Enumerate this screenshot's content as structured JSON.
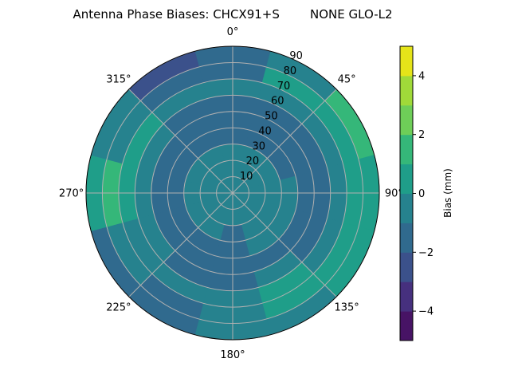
{
  "chart_data": {
    "type": "polar-contour",
    "title": "Antenna Phase Biases: CHCX91+S        NONE GLO-L2",
    "theta_direction": "clockwise",
    "theta_zero": "north",
    "theta_ticks": [
      "0°",
      "45°",
      "90°",
      "135°",
      "180°",
      "225°",
      "270°",
      "315°"
    ],
    "theta_tick_values": [
      0,
      45,
      90,
      135,
      180,
      225,
      270,
      315
    ],
    "r_ticks": [
      "10",
      "20",
      "30",
      "40",
      "50",
      "60",
      "70",
      "80",
      "90"
    ],
    "r_tick_values": [
      10,
      20,
      30,
      40,
      50,
      60,
      70,
      80,
      90
    ],
    "rlim": [
      0,
      90
    ],
    "grid": true,
    "colorbar": {
      "label": "Bias (mm)",
      "levels": [
        -5,
        -4,
        -3,
        -2,
        -1,
        0,
        1,
        2,
        3,
        4,
        5
      ],
      "ticks": [
        "−4",
        "−2",
        "0",
        "2",
        "4"
      ],
      "tick_values": [
        -4,
        -2,
        0,
        2,
        4
      ],
      "colors": [
        "#471365",
        "#46307e",
        "#3b518b",
        "#306a8e",
        "#26828e",
        "#1f9e89",
        "#35b779",
        "#6ece58",
        "#a0da39",
        "#e5e419"
      ]
    },
    "azimuths": [
      0,
      30,
      60,
      90,
      120,
      150,
      180,
      210,
      240,
      270,
      300,
      330
    ],
    "zenith_bands": [
      [
        0,
        10
      ],
      [
        10,
        20
      ],
      [
        20,
        30
      ],
      [
        30,
        40
      ],
      [
        40,
        50
      ],
      [
        50,
        60
      ],
      [
        60,
        70
      ],
      [
        70,
        80
      ],
      [
        80,
        90
      ]
    ],
    "values": [
      [
        -0.5,
        -0.5,
        -0.5,
        -1.5,
        -1.5,
        -1.5,
        -0.5,
        -1.5,
        -1.5
      ],
      [
        -0.5,
        -0.5,
        -0.5,
        -1.5,
        -1.5,
        -1.5,
        -0.5,
        0.5,
        -0.5
      ],
      [
        -0.5,
        -0.5,
        -0.5,
        -1.5,
        -1.5,
        -1.5,
        -0.5,
        0.5,
        1.5
      ],
      [
        -0.5,
        -0.5,
        -0.5,
        -0.5,
        -1.5,
        -1.5,
        -0.5,
        0.5,
        0.5
      ],
      [
        -0.5,
        -0.5,
        -0.5,
        -0.5,
        -1.5,
        -1.5,
        -0.5,
        0.5,
        0.5
      ],
      [
        -0.5,
        -0.5,
        -0.5,
        -0.5,
        -1.5,
        -0.5,
        0.5,
        0.5,
        -0.5
      ],
      [
        -0.5,
        -0.5,
        -1.5,
        -1.5,
        -1.5,
        -1.5,
        -0.5,
        -0.5,
        -0.5
      ],
      [
        -0.5,
        -0.5,
        -0.5,
        -1.5,
        -1.5,
        -1.5,
        -0.5,
        -1.5,
        -1.5
      ],
      [
        -0.5,
        -0.5,
        -0.5,
        -1.5,
        -1.5,
        -0.5,
        -0.5,
        -0.5,
        -1.5
      ],
      [
        -0.5,
        -0.5,
        -0.5,
        -1.5,
        -1.5,
        -0.5,
        0.5,
        1.5,
        0.5
      ],
      [
        -0.5,
        -0.5,
        -0.5,
        -1.5,
        -1.5,
        -0.5,
        0.5,
        -0.5,
        -0.5
      ],
      [
        -0.5,
        -0.5,
        -0.5,
        -1.5,
        -1.5,
        -1.5,
        -0.5,
        -1.5,
        -2.5
      ]
    ]
  }
}
